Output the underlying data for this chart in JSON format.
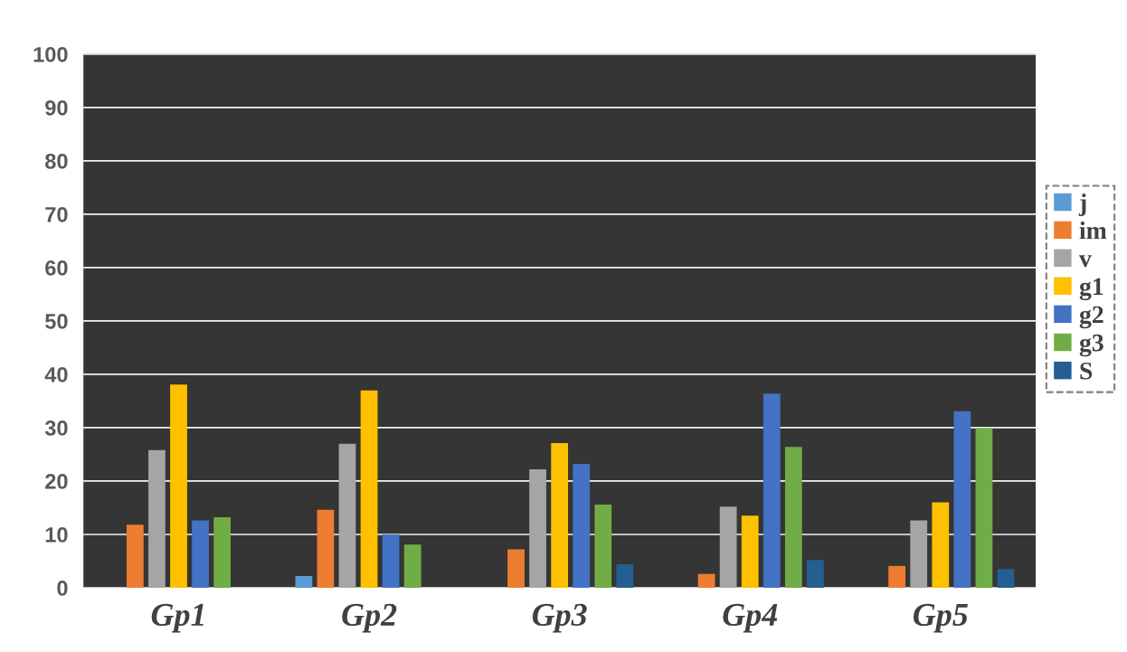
{
  "chart_data": {
    "type": "bar",
    "categories": [
      "Gp1",
      "Gp2",
      "Gp3",
      "Gp4",
      "Gp5"
    ],
    "series": [
      {
        "name": "j",
        "color": "#5b9bd5",
        "values": [
          0,
          2.2,
          0,
          0,
          0
        ]
      },
      {
        "name": "im",
        "color": "#ed7d31",
        "values": [
          11.8,
          14.6,
          7.2,
          2.6,
          4.1
        ]
      },
      {
        "name": "v",
        "color": "#a5a5a5",
        "values": [
          25.8,
          27,
          22.2,
          15.2,
          12.6
        ]
      },
      {
        "name": "g1",
        "color": "#ffc000",
        "values": [
          38.1,
          37,
          27.1,
          13.5,
          16
        ]
      },
      {
        "name": "g2",
        "color": "#4472c4",
        "values": [
          12.6,
          10,
          23.2,
          36.4,
          33.1
        ]
      },
      {
        "name": "g3",
        "color": "#70ad47",
        "values": [
          13.2,
          8.1,
          15.6,
          26.4,
          29.9
        ]
      },
      {
        "name": "S",
        "color": "#255e91",
        "values": [
          0,
          0,
          4.4,
          5.2,
          3.5
        ]
      }
    ],
    "ylim": [
      0,
      100
    ],
    "yticks": [
      0,
      10,
      20,
      30,
      40,
      50,
      60,
      70,
      80,
      90,
      100
    ],
    "grid": "y",
    "legend": "right"
  }
}
